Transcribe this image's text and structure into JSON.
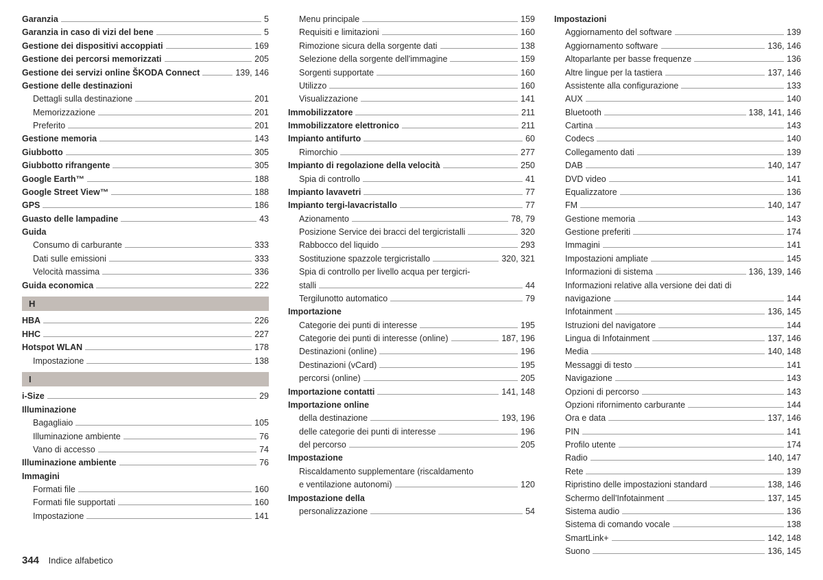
{
  "footer": {
    "pageNumber": "344",
    "title": "Indice alfabetico"
  },
  "letters": {
    "H": "H",
    "I": "I"
  },
  "colors": {
    "letterBg": "#c3bcb7",
    "leader": "#9c9c9c",
    "text": "#2a2a2a"
  },
  "col1": [
    {
      "label": "Garanzia",
      "page": "5",
      "bold": true
    },
    {
      "label": "Garanzia in caso di vizi del bene",
      "page": "5",
      "bold": true
    },
    {
      "label": "Gestione dei dispositivi accoppiati",
      "page": "169",
      "bold": true
    },
    {
      "label": "Gestione dei percorsi memorizzati",
      "page": "205",
      "bold": true
    },
    {
      "label": "Gestione dei servizi online ŠKODA Connect",
      "page": "139, 146",
      "bold": true
    },
    {
      "label": "Gestione delle destinazioni",
      "page": "",
      "bold": true,
      "nopage": true
    },
    {
      "label": "Dettagli sulla destinazione",
      "page": "201",
      "sub": true
    },
    {
      "label": "Memorizzazione",
      "page": "201",
      "sub": true
    },
    {
      "label": "Preferito",
      "page": "201",
      "sub": true
    },
    {
      "label": "Gestione memoria",
      "page": "143",
      "bold": true
    },
    {
      "label": "Giubbotto",
      "page": "305",
      "bold": true
    },
    {
      "label": "Giubbotto rifrangente",
      "page": "305",
      "bold": true
    },
    {
      "label": "Google Earth™",
      "page": "188",
      "bold": true
    },
    {
      "label": "Google Street View™",
      "page": "188",
      "bold": true
    },
    {
      "label": "GPS",
      "page": "186",
      "bold": true
    },
    {
      "label": "Guasto delle lampadine",
      "page": "43",
      "bold": true
    },
    {
      "label": "Guida",
      "page": "",
      "bold": true,
      "nopage": true
    },
    {
      "label": "Consumo di carburante",
      "page": "333",
      "sub": true
    },
    {
      "label": "Dati sulle emissioni",
      "page": "333",
      "sub": true
    },
    {
      "label": "Velocità massima",
      "page": "336",
      "sub": true
    },
    {
      "label": "Guida economica",
      "page": "222",
      "bold": true
    },
    {
      "letter": "H"
    },
    {
      "label": "HBA",
      "page": "226",
      "bold": true
    },
    {
      "label": "HHC",
      "page": "227",
      "bold": true
    },
    {
      "label": "Hotspot WLAN",
      "page": "178",
      "bold": true
    },
    {
      "label": "Impostazione",
      "page": "138",
      "sub": true
    },
    {
      "letter": "I"
    },
    {
      "label": "i-Size",
      "page": "29",
      "bold": true
    },
    {
      "label": "Illuminazione",
      "page": "",
      "bold": true,
      "nopage": true
    },
    {
      "label": "Bagagliaio",
      "page": "105",
      "sub": true
    },
    {
      "label": "Illuminazione ambiente",
      "page": "76",
      "sub": true
    },
    {
      "label": "Vano di accesso",
      "page": "74",
      "sub": true
    },
    {
      "label": "Illuminazione ambiente",
      "page": "76",
      "bold": true
    },
    {
      "label": "Immagini",
      "page": "",
      "bold": true,
      "nopage": true
    },
    {
      "label": "Formati file",
      "page": "160",
      "sub": true
    },
    {
      "label": "Formati file supportati",
      "page": "160",
      "sub": true
    },
    {
      "label": "Impostazione",
      "page": "141",
      "sub": true
    }
  ],
  "col2": [
    {
      "label": "Menu principale",
      "page": "159",
      "sub": true
    },
    {
      "label": "Requisiti e limitazioni",
      "page": "160",
      "sub": true
    },
    {
      "label": "Rimozione sicura della sorgente dati",
      "page": "138",
      "sub": true
    },
    {
      "label": "Selezione della sorgente dell'immagine",
      "page": "159",
      "sub": true
    },
    {
      "label": "Sorgenti supportate",
      "page": "160",
      "sub": true
    },
    {
      "label": "Utilizzo",
      "page": "160",
      "sub": true
    },
    {
      "label": "Visualizzazione",
      "page": "141",
      "sub": true
    },
    {
      "label": "Immobilizzatore",
      "page": "211",
      "bold": true
    },
    {
      "label": "Immobilizzatore elettronico",
      "page": "211",
      "bold": true
    },
    {
      "label": "Impianto antifurto",
      "page": "60",
      "bold": true
    },
    {
      "label": "Rimorchio",
      "page": "277",
      "sub": true
    },
    {
      "label": "Impianto di regolazione della velocità",
      "page": "250",
      "bold": true
    },
    {
      "label": "Spia di controllo",
      "page": "41",
      "sub": true
    },
    {
      "label": "Impianto lavavetri",
      "page": "77",
      "bold": true
    },
    {
      "label": "Impianto tergi-lavacristallo",
      "page": "77",
      "bold": true
    },
    {
      "label": "Azionamento",
      "page": "78, 79",
      "sub": true
    },
    {
      "label": "Posizione Service dei bracci del tergicristalli",
      "page": "320",
      "sub": true
    },
    {
      "label": "Rabbocco del liquido",
      "page": "293",
      "sub": true
    },
    {
      "label": "Sostituzione spazzole tergicristallo",
      "page": "320, 321",
      "sub": true
    },
    {
      "label": "Spia di controllo per livello acqua per tergicri-",
      "page": "",
      "sub": true,
      "nopage": true
    },
    {
      "label": "  stalli",
      "page": "44",
      "sub": true
    },
    {
      "label": "Tergilunotto automatico",
      "page": "79",
      "sub": true
    },
    {
      "label": "Importazione",
      "page": "",
      "bold": true,
      "nopage": true
    },
    {
      "label": "Categorie dei punti di interesse",
      "page": "195",
      "sub": true
    },
    {
      "label": "Categorie dei punti di interesse (online)",
      "page": "187, 196",
      "sub": true
    },
    {
      "label": "Destinazioni (online)",
      "page": "196",
      "sub": true
    },
    {
      "label": "Destinazioni (vCard)",
      "page": "195",
      "sub": true
    },
    {
      "label": "percorsi (online)",
      "page": "205",
      "sub": true
    },
    {
      "label": "Importazione contatti",
      "page": "141, 148",
      "bold": true
    },
    {
      "label": "Importazione online",
      "page": "",
      "bold": true,
      "nopage": true
    },
    {
      "label": "della destinazione",
      "page": "193, 196",
      "sub": true
    },
    {
      "label": "delle categorie dei punti di interesse",
      "page": "196",
      "sub": true
    },
    {
      "label": "del percorso",
      "page": "205",
      "sub": true
    },
    {
      "label": "Impostazione",
      "page": "",
      "bold": true,
      "nopage": true
    },
    {
      "label": "Riscaldamento supplementare (riscaldamento",
      "page": "",
      "sub": true,
      "nopage": true
    },
    {
      "label": "  e ventilazione autonomi)",
      "page": "120",
      "sub": true
    },
    {
      "label": "Impostazione della",
      "page": "",
      "bold": true,
      "nopage": true
    },
    {
      "label": "personalizzazione",
      "page": "54",
      "sub": true
    }
  ],
  "col3": [
    {
      "label": "Impostazioni",
      "page": "",
      "bold": true,
      "nopage": true
    },
    {
      "label": "Aggiornamento del software",
      "page": "139",
      "sub": true
    },
    {
      "label": "Aggiornamento software",
      "page": "136, 146",
      "sub": true
    },
    {
      "label": "Altoparlante per basse frequenze",
      "page": "136",
      "sub": true
    },
    {
      "label": "Altre lingue per la tastiera",
      "page": "137, 146",
      "sub": true
    },
    {
      "label": "Assistente alla configurazione",
      "page": "133",
      "sub": true
    },
    {
      "label": "AUX",
      "page": "140",
      "sub": true
    },
    {
      "label": "Bluetooth",
      "page": "138, 141, 146",
      "sub": true
    },
    {
      "label": "Cartina",
      "page": "143",
      "sub": true
    },
    {
      "label": "Codecs",
      "page": "140",
      "sub": true
    },
    {
      "label": "Collegamento dati",
      "page": "139",
      "sub": true
    },
    {
      "label": "DAB",
      "page": "140, 147",
      "sub": true
    },
    {
      "label": "DVD video",
      "page": "141",
      "sub": true
    },
    {
      "label": "Equalizzatore",
      "page": "136",
      "sub": true
    },
    {
      "label": "FM",
      "page": "140, 147",
      "sub": true
    },
    {
      "label": "Gestione memoria",
      "page": "143",
      "sub": true
    },
    {
      "label": "Gestione preferiti",
      "page": "174",
      "sub": true
    },
    {
      "label": "Immagini",
      "page": "141",
      "sub": true
    },
    {
      "label": "Impostazioni ampliate",
      "page": "145",
      "sub": true
    },
    {
      "label": "Informazioni di sistema",
      "page": "136, 139, 146",
      "sub": true
    },
    {
      "label": "Informazioni relative alla versione dei dati di",
      "page": "",
      "sub": true,
      "nopage": true
    },
    {
      "label": "  navigazione",
      "page": "144",
      "sub": true
    },
    {
      "label": "Infotainment",
      "page": "136, 145",
      "sub": true
    },
    {
      "label": "Istruzioni del navigatore",
      "page": "144",
      "sub": true
    },
    {
      "label": "Lingua di Infotainment",
      "page": "137, 146",
      "sub": true
    },
    {
      "label": "Media",
      "page": "140, 148",
      "sub": true
    },
    {
      "label": "Messaggi di testo",
      "page": "141",
      "sub": true
    },
    {
      "label": "Navigazione",
      "page": "143",
      "sub": true
    },
    {
      "label": "Opzioni di percorso",
      "page": "143",
      "sub": true
    },
    {
      "label": "Opzioni rifornimento carburante",
      "page": "144",
      "sub": true
    },
    {
      "label": "Ora e data",
      "page": "137, 146",
      "sub": true
    },
    {
      "label": "PIN",
      "page": "141",
      "sub": true
    },
    {
      "label": "Profilo utente",
      "page": "174",
      "sub": true
    },
    {
      "label": "Radio",
      "page": "140, 147",
      "sub": true
    },
    {
      "label": "Rete",
      "page": "139",
      "sub": true
    },
    {
      "label": "Ripristino delle impostazioni standard",
      "page": "138, 146",
      "sub": true
    },
    {
      "label": "Schermo dell'Infotainment",
      "page": "137, 145",
      "sub": true
    },
    {
      "label": "Sistema audio",
      "page": "136",
      "sub": true
    },
    {
      "label": "Sistema di comando vocale",
      "page": "138",
      "sub": true
    },
    {
      "label": "SmartLink+",
      "page": "142, 148",
      "sub": true
    },
    {
      "label": "Suono",
      "page": "136, 145",
      "sub": true
    }
  ]
}
